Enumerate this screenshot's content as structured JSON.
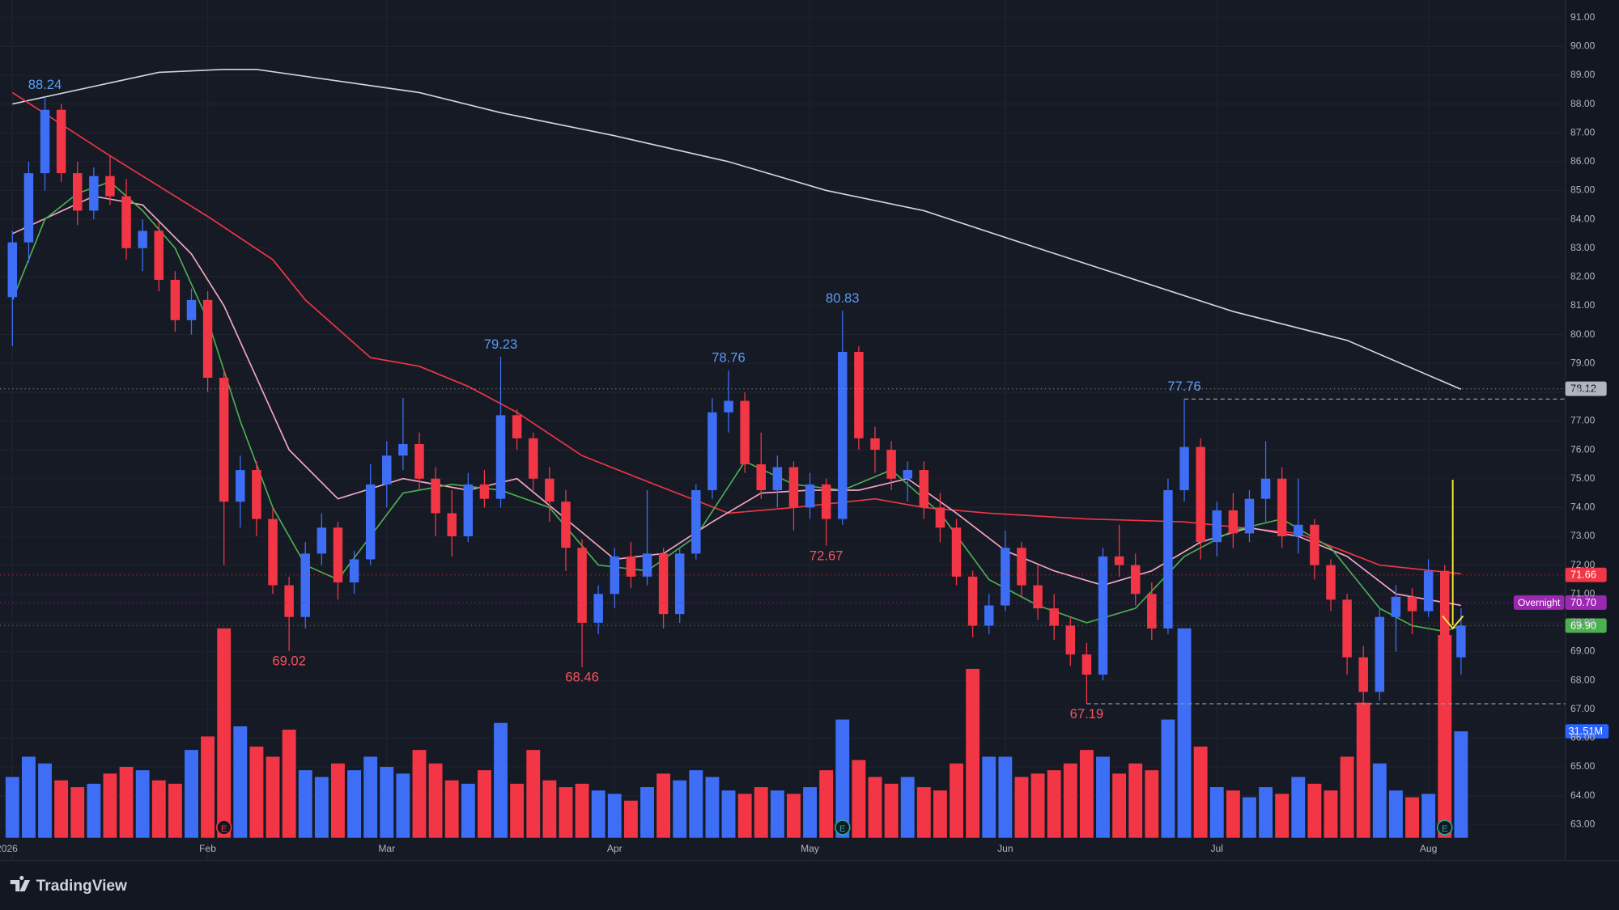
{
  "chart_data": {
    "type": "candlestick",
    "categories": [
      "2026",
      null,
      null,
      null,
      null,
      null,
      null,
      null,
      null,
      null,
      null,
      null,
      "Feb",
      null,
      null,
      null,
      null,
      null,
      null,
      null,
      null,
      null,
      null,
      "Mar",
      null,
      null,
      null,
      null,
      null,
      null,
      null,
      null,
      null,
      null,
      null,
      null,
      null,
      "Apr",
      null,
      null,
      null,
      null,
      null,
      null,
      null,
      null,
      null,
      null,
      null,
      "May",
      null,
      null,
      null,
      null,
      null,
      null,
      null,
      null,
      null,
      null,
      null,
      "Jun",
      null,
      null,
      null,
      null,
      null,
      null,
      null,
      null,
      null,
      null,
      null,
      null,
      "Jul",
      null,
      null,
      null,
      null,
      null,
      null,
      null,
      null,
      null,
      null,
      null,
      null,
      "Aug",
      null,
      null
    ],
    "candles": [
      [
        81.3,
        83.6,
        79.6,
        83.2
      ],
      [
        83.2,
        86.0,
        82.5,
        85.6
      ],
      [
        85.6,
        88.24,
        85.0,
        87.8
      ],
      [
        87.8,
        88.0,
        85.3,
        85.6
      ],
      [
        85.6,
        86.0,
        83.8,
        84.3
      ],
      [
        84.3,
        85.8,
        84.0,
        85.5
      ],
      [
        85.5,
        86.2,
        84.5,
        84.8
      ],
      [
        84.8,
        85.4,
        82.6,
        83.0
      ],
      [
        83.0,
        84.0,
        82.2,
        83.6
      ],
      [
        83.6,
        83.9,
        81.5,
        81.9
      ],
      [
        81.9,
        82.2,
        80.1,
        80.5
      ],
      [
        80.5,
        81.6,
        80.0,
        81.2
      ],
      [
        81.2,
        81.5,
        78.0,
        78.5
      ],
      [
        78.5,
        78.8,
        72.0,
        74.2
      ],
      [
        74.2,
        75.8,
        73.3,
        75.3
      ],
      [
        75.3,
        75.6,
        73.0,
        73.6
      ],
      [
        73.6,
        74.0,
        71.0,
        71.3
      ],
      [
        71.3,
        71.6,
        69.02,
        70.2
      ],
      [
        70.2,
        72.8,
        69.8,
        72.4
      ],
      [
        72.4,
        73.8,
        72.0,
        73.3
      ],
      [
        73.3,
        73.5,
        70.8,
        71.4
      ],
      [
        71.4,
        72.5,
        71.0,
        72.2
      ],
      [
        72.2,
        75.5,
        72.0,
        74.8
      ],
      [
        74.8,
        76.3,
        74.0,
        75.8
      ],
      [
        75.8,
        77.8,
        75.3,
        76.2
      ],
      [
        76.2,
        76.6,
        74.6,
        75.0
      ],
      [
        75.0,
        75.4,
        73.0,
        73.8
      ],
      [
        73.8,
        74.6,
        72.3,
        73.0
      ],
      [
        73.0,
        75.2,
        72.8,
        74.8
      ],
      [
        74.8,
        75.3,
        74.0,
        74.3
      ],
      [
        74.3,
        79.23,
        74.0,
        77.2
      ],
      [
        77.2,
        77.4,
        76.0,
        76.4
      ],
      [
        76.4,
        76.6,
        74.6,
        75.0
      ],
      [
        75.0,
        75.4,
        73.5,
        74.2
      ],
      [
        74.2,
        74.6,
        71.8,
        72.6
      ],
      [
        72.6,
        72.9,
        68.46,
        70.0
      ],
      [
        70.0,
        71.3,
        69.6,
        71.0
      ],
      [
        71.0,
        72.6,
        70.5,
        72.3
      ],
      [
        72.3,
        72.8,
        71.2,
        71.6
      ],
      [
        71.6,
        74.6,
        71.3,
        72.4
      ],
      [
        72.4,
        72.6,
        69.8,
        70.3
      ],
      [
        70.3,
        72.6,
        70.0,
        72.4
      ],
      [
        72.4,
        74.8,
        72.2,
        74.6
      ],
      [
        74.6,
        77.8,
        74.3,
        77.3
      ],
      [
        77.3,
        78.76,
        76.6,
        77.7
      ],
      [
        77.7,
        78.0,
        75.2,
        75.5
      ],
      [
        75.5,
        76.6,
        74.3,
        74.6
      ],
      [
        74.6,
        75.8,
        74.0,
        75.4
      ],
      [
        75.4,
        75.6,
        73.2,
        74.0
      ],
      [
        74.0,
        75.2,
        73.6,
        74.8
      ],
      [
        74.8,
        75.0,
        72.67,
        73.6
      ],
      [
        73.6,
        80.83,
        73.4,
        79.4
      ],
      [
        79.4,
        79.6,
        76.0,
        76.4
      ],
      [
        76.4,
        76.8,
        75.2,
        76.0
      ],
      [
        76.0,
        76.3,
        74.6,
        75.0
      ],
      [
        75.0,
        75.6,
        74.2,
        75.3
      ],
      [
        75.3,
        75.6,
        73.6,
        74.0
      ],
      [
        74.0,
        74.5,
        72.8,
        73.3
      ],
      [
        73.3,
        73.6,
        71.3,
        71.6
      ],
      [
        71.6,
        71.8,
        69.5,
        69.9
      ],
      [
        69.9,
        71.0,
        69.6,
        70.6
      ],
      [
        70.6,
        73.2,
        70.4,
        72.6
      ],
      [
        72.6,
        72.8,
        70.9,
        71.3
      ],
      [
        71.3,
        72.0,
        70.1,
        70.5
      ],
      [
        70.5,
        71.0,
        69.4,
        69.9
      ],
      [
        69.9,
        70.2,
        68.5,
        68.9
      ],
      [
        68.9,
        69.3,
        67.19,
        68.2
      ],
      [
        68.2,
        72.6,
        68.0,
        72.3
      ],
      [
        72.3,
        73.4,
        71.6,
        72.0
      ],
      [
        72.0,
        72.4,
        70.6,
        71.0
      ],
      [
        71.0,
        71.4,
        69.4,
        69.8
      ],
      [
        69.8,
        75.0,
        69.6,
        74.6
      ],
      [
        74.6,
        77.76,
        74.2,
        76.1
      ],
      [
        76.1,
        76.4,
        72.2,
        72.8
      ],
      [
        72.8,
        74.2,
        72.3,
        73.9
      ],
      [
        73.9,
        74.5,
        72.6,
        73.1
      ],
      [
        73.1,
        74.6,
        72.8,
        74.3
      ],
      [
        74.3,
        76.3,
        73.5,
        75.0
      ],
      [
        75.0,
        75.4,
        72.6,
        73.0
      ],
      [
        73.0,
        75.0,
        72.4,
        73.4
      ],
      [
        73.4,
        73.6,
        71.5,
        72.0
      ],
      [
        72.0,
        72.2,
        70.4,
        70.8
      ],
      [
        70.8,
        71.0,
        68.2,
        68.8
      ],
      [
        68.8,
        69.2,
        66.0,
        67.6
      ],
      [
        67.6,
        70.5,
        67.3,
        70.2
      ],
      [
        70.2,
        71.3,
        69.0,
        70.9
      ],
      [
        70.9,
        71.2,
        69.6,
        70.4
      ],
      [
        70.4,
        72.2,
        70.2,
        71.8
      ],
      [
        71.8,
        72.0,
        67.9,
        68.8
      ],
      [
        68.8,
        70.5,
        68.2,
        69.9
      ]
    ],
    "volumes": [
      18,
      24,
      22,
      17,
      15,
      16,
      19,
      21,
      20,
      17,
      16,
      26,
      30,
      62,
      33,
      27,
      24,
      32,
      20,
      18,
      22,
      20,
      24,
      21,
      19,
      26,
      22,
      17,
      16,
      20,
      34,
      16,
      26,
      17,
      15,
      16,
      14,
      13,
      11,
      15,
      19,
      17,
      20,
      18,
      14,
      13,
      15,
      14,
      13,
      15,
      20,
      35,
      23,
      18,
      16,
      18,
      15,
      14,
      22,
      50,
      24,
      24,
      18,
      19,
      20,
      22,
      26,
      24,
      19,
      22,
      20,
      35,
      62,
      27,
      15,
      14,
      12,
      15,
      13,
      18,
      16,
      14,
      24,
      40,
      22,
      14,
      12,
      13,
      60,
      31.51
    ],
    "up_color": "#3d6ef5",
    "down_color": "#f23645",
    "moving_averages": [
      {
        "color": "#d1d4dc",
        "x": [
          0,
          9,
          13,
          15,
          25,
          30,
          37,
          44,
          50,
          56,
          63,
          69,
          75,
          82,
          89
        ],
        "values": [
          88.0,
          89.1,
          89.2,
          89.2,
          88.4,
          87.7,
          86.9,
          86.0,
          85.0,
          84.3,
          83.0,
          81.9,
          80.8,
          79.8,
          78.1
        ]
      },
      {
        "color": "#f23645",
        "x": [
          0,
          6,
          12,
          16,
          18,
          22,
          25,
          28,
          31,
          35,
          39,
          44,
          48,
          53,
          56,
          60,
          66,
          72,
          79,
          84,
          89
        ],
        "values": [
          88.4,
          86.2,
          84.1,
          82.6,
          81.2,
          79.2,
          78.9,
          78.2,
          77.3,
          75.8,
          74.9,
          73.8,
          74.0,
          74.3,
          74.0,
          73.8,
          73.6,
          73.5,
          73.1,
          72.0,
          71.7
        ]
      },
      {
        "color": "#f5a6c4",
        "x": [
          0,
          5,
          8,
          11,
          13,
          15,
          17,
          20,
          24,
          28,
          31,
          34,
          37,
          40,
          43,
          46,
          49,
          52,
          55,
          58,
          61,
          64,
          67,
          70,
          73,
          76,
          79,
          82,
          85,
          89
        ],
        "values": [
          83.5,
          84.8,
          84.5,
          82.8,
          81.0,
          78.5,
          76.0,
          74.3,
          75.0,
          74.6,
          75.0,
          73.6,
          72.2,
          72.4,
          73.5,
          74.5,
          74.6,
          74.6,
          75.0,
          73.8,
          72.5,
          71.8,
          71.3,
          71.8,
          72.8,
          73.3,
          73.0,
          72.3,
          71.0,
          70.6
        ]
      },
      {
        "color": "#4caf50",
        "x": [
          0,
          2,
          4,
          6,
          8,
          10,
          12,
          14,
          16,
          18,
          20,
          22,
          24,
          27,
          30,
          33,
          36,
          39,
          42,
          45,
          48,
          51,
          54,
          57,
          60,
          63,
          66,
          69,
          72,
          75,
          78,
          81,
          84,
          86,
          88,
          89
        ],
        "values": [
          81.2,
          84.0,
          84.9,
          85.3,
          84.3,
          83.0,
          80.5,
          77.0,
          74.0,
          72.0,
          71.5,
          73.0,
          74.5,
          74.8,
          74.6,
          74.0,
          72.0,
          71.8,
          73.0,
          75.6,
          74.8,
          74.6,
          75.3,
          73.8,
          71.5,
          70.6,
          70.0,
          70.5,
          72.3,
          73.2,
          73.6,
          72.6,
          70.5,
          69.9,
          69.7,
          69.9
        ]
      }
    ],
    "ylim": [
      61.75,
      91.61
    ],
    "yticks": [
      {
        "value": 63,
        "label": "63.00"
      },
      {
        "value": 64,
        "label": "64.00"
      },
      {
        "value": 65,
        "label": "65.00"
      },
      {
        "value": 66,
        "label": "66.00"
      },
      {
        "value": 67,
        "label": "67.00"
      },
      {
        "value": 68,
        "label": "68.00"
      },
      {
        "value": 69,
        "label": "69.00"
      },
      {
        "value": 70,
        "label": "70.00"
      },
      {
        "value": 71,
        "label": "71.00"
      },
      {
        "value": 72,
        "label": "72.00"
      },
      {
        "value": 73,
        "label": "73.00"
      },
      {
        "value": 74,
        "label": "74.00"
      },
      {
        "value": 75,
        "label": "75.00"
      },
      {
        "value": 76,
        "label": "76.00"
      },
      {
        "value": 77,
        "label": "77.00"
      },
      {
        "value": 78,
        "label": "78.00"
      },
      {
        "value": 79,
        "label": "79.00"
      },
      {
        "value": 80,
        "label": "80.00"
      },
      {
        "value": 81,
        "label": "81.00"
      },
      {
        "value": 82,
        "label": "82.00"
      },
      {
        "value": 83,
        "label": "83.00"
      },
      {
        "value": 84,
        "label": "84.00"
      },
      {
        "value": 85,
        "label": "85.00"
      },
      {
        "value": 86,
        "label": "86.00"
      },
      {
        "value": 87,
        "label": "87.00"
      },
      {
        "value": 88,
        "label": "88.00"
      },
      {
        "value": 89,
        "label": "89.00"
      },
      {
        "value": 90,
        "label": "90.00"
      },
      {
        "value": 91,
        "label": "91.00"
      }
    ],
    "vlim": [
      0,
      62
    ],
    "annotations": [
      {
        "index": 2,
        "value": 88.24,
        "kind": "high"
      },
      {
        "index": 17,
        "value": 69.02,
        "kind": "low"
      },
      {
        "index": 30,
        "value": 79.23,
        "kind": "high"
      },
      {
        "index": 35,
        "value": 68.46,
        "kind": "low"
      },
      {
        "index": 44,
        "value": 78.76,
        "kind": "high"
      },
      {
        "index": 50,
        "value": 72.67,
        "kind": "low"
      },
      {
        "index": 51,
        "value": 80.83,
        "kind": "high"
      },
      {
        "index": 66,
        "value": 67.19,
        "kind": "low"
      },
      {
        "index": 72,
        "value": 77.76,
        "kind": "high"
      }
    ],
    "levels": [
      {
        "index": 72,
        "value": 77.76
      },
      {
        "index": 66,
        "value": 67.19
      }
    ],
    "badges": [
      {
        "value": 78.12,
        "label": "78.12",
        "color": "#b2b5be"
      },
      {
        "value": 71.66,
        "label": "71.66",
        "color": "#f23645"
      },
      {
        "value": 70.7,
        "label": "70.70",
        "color": "#9c27b0",
        "tag": "Overnight"
      },
      {
        "value": 69.9,
        "label": "69.90",
        "color": "#4caf50"
      }
    ],
    "volume_badge": {
      "value": 31.51,
      "label": "31.51M",
      "color": "#2962ff"
    },
    "earnings": [
      {
        "index": 13,
        "label": "E",
        "color": "#f23645"
      },
      {
        "index": 51,
        "label": "E",
        "color": "#26a69a"
      },
      {
        "index": 88,
        "label": "E",
        "color": "#26a69a"
      }
    ],
    "brand": "TradingView"
  }
}
